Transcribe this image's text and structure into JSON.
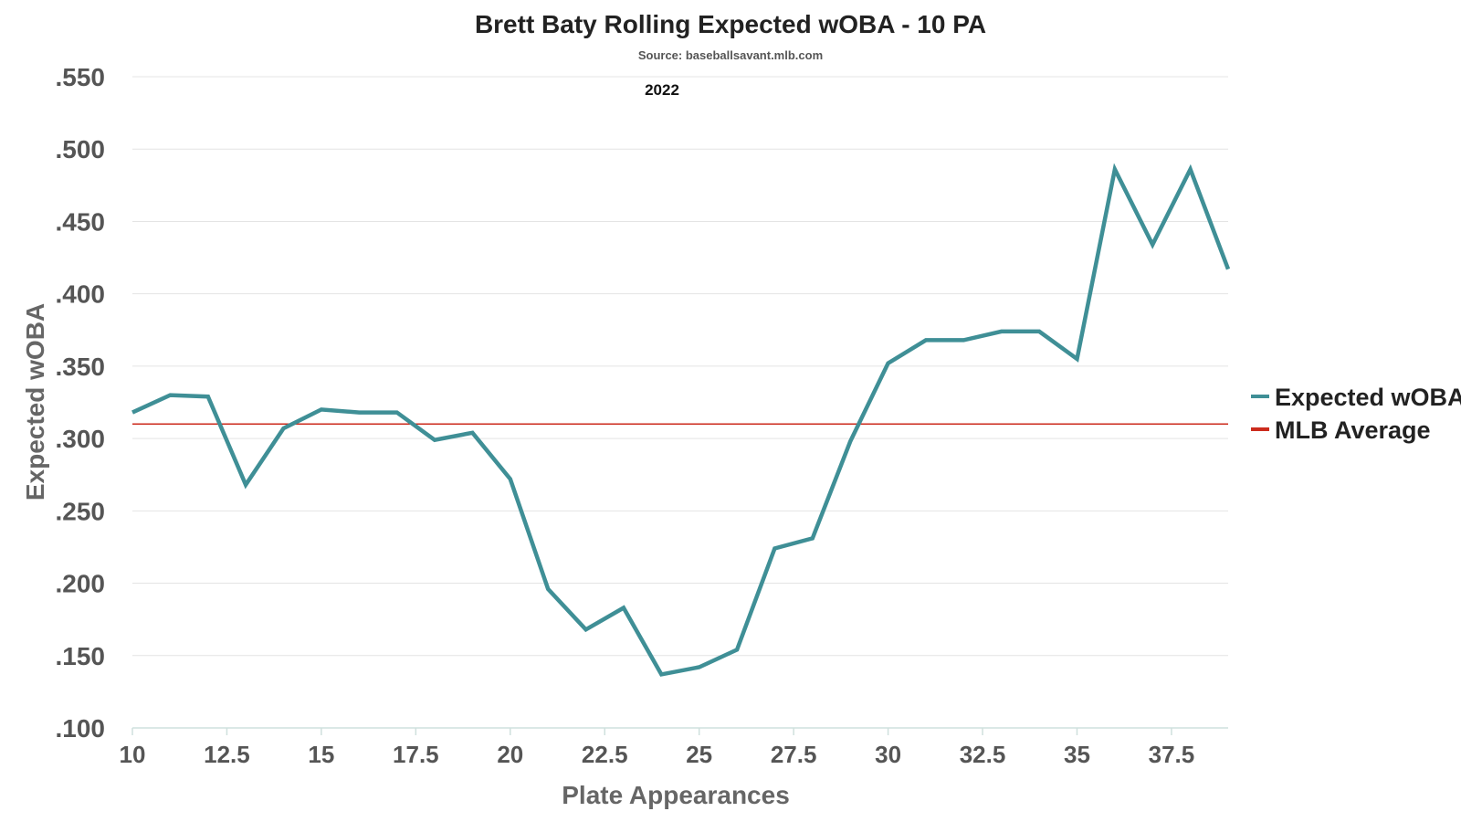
{
  "chart_data": {
    "type": "line",
    "title": "Brett Baty Rolling Expected wOBA - 10 PA",
    "subtitle": "Source: baseballsavant.mlb.com",
    "annotation": "2022",
    "xlabel": "Plate Appearances",
    "ylabel": "Expected wOBA",
    "xlim": [
      10,
      39
    ],
    "ylim": [
      0.1,
      0.55
    ],
    "x_ticks": [
      10,
      12.5,
      15,
      17.5,
      20,
      22.5,
      25,
      27.5,
      30,
      32.5,
      35,
      37.5
    ],
    "x_tick_labels": [
      "10",
      "12.5",
      "15",
      "17.5",
      "20",
      "22.5",
      "25",
      "27.5",
      "30",
      "32.5",
      "35",
      "37.5"
    ],
    "y_ticks": [
      0.1,
      0.15,
      0.2,
      0.25,
      0.3,
      0.35,
      0.4,
      0.45,
      0.5,
      0.55
    ],
    "y_tick_labels": [
      ".100",
      ".150",
      ".200",
      ".250",
      ".300",
      ".350",
      ".400",
      ".450",
      ".500",
      ".550"
    ],
    "grid": true,
    "legend_position": "right",
    "series": [
      {
        "name": "Expected wOBA",
        "color": "#3f8f96",
        "x": [
          10,
          11,
          12,
          13,
          14,
          15,
          16,
          17,
          18,
          19,
          20,
          21,
          22,
          23,
          24,
          25,
          26,
          27,
          28,
          29,
          30,
          31,
          32,
          33,
          34,
          35,
          36,
          37,
          38,
          39
        ],
        "values": [
          0.318,
          0.33,
          0.329,
          0.268,
          0.307,
          0.32,
          0.318,
          0.318,
          0.299,
          0.304,
          0.272,
          0.196,
          0.168,
          0.183,
          0.137,
          0.142,
          0.154,
          0.224,
          0.231,
          0.298,
          0.352,
          0.368,
          0.368,
          0.374,
          0.374,
          0.355,
          0.486,
          0.434,
          0.486,
          0.417
        ]
      },
      {
        "name": "MLB Average",
        "color": "#cc2b1d",
        "value": 0.31
      }
    ]
  }
}
